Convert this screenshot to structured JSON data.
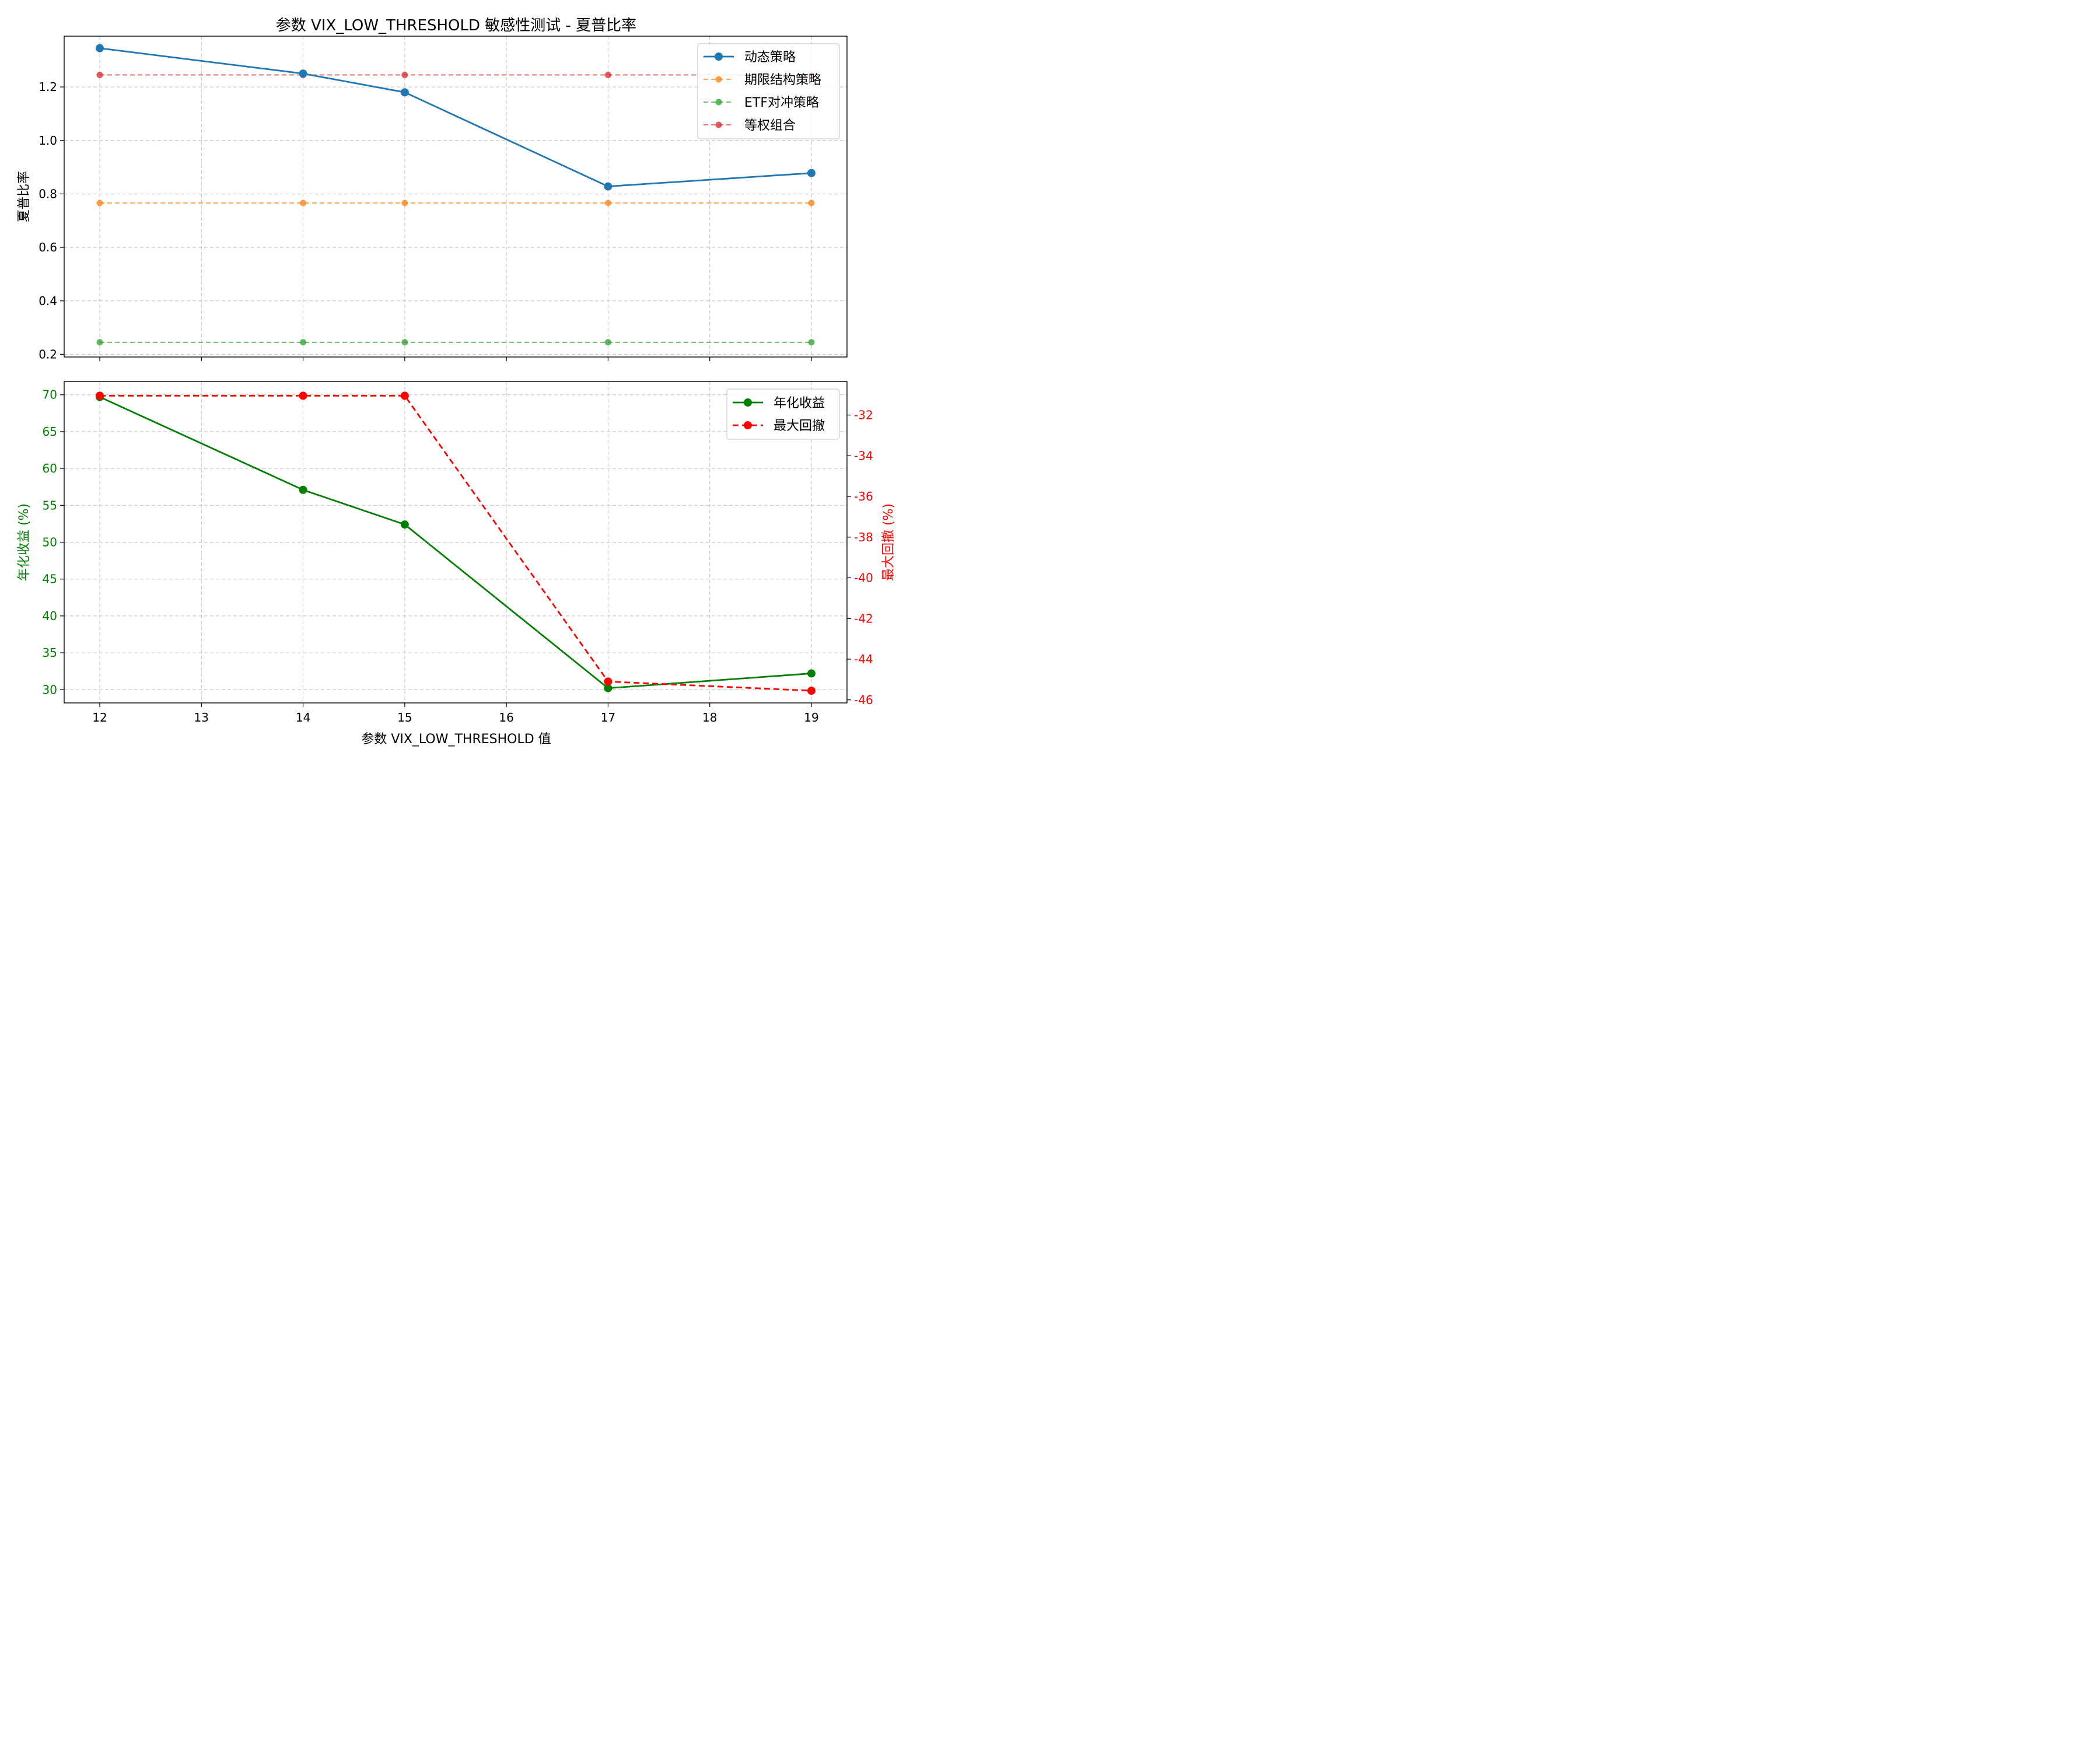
{
  "chart_data": [
    {
      "type": "line",
      "title": "参数 VIX_LOW_THRESHOLD 敏感性测试 - 夏普比率",
      "xlabel": "",
      "ylabel": "夏普比率",
      "x": [
        12,
        14,
        15,
        17,
        19
      ],
      "x_ticks": [
        "12",
        "13",
        "14",
        "15",
        "16",
        "17",
        "18",
        "19"
      ],
      "xlim": [
        11.65,
        19.35
      ],
      "ylim": [
        0.19,
        1.39
      ],
      "y_ticks": [
        "0.2",
        "0.4",
        "0.6",
        "0.8",
        "1.0",
        "1.2"
      ],
      "grid": true,
      "legend_position": "top-right",
      "series": [
        {
          "name": "动态策略",
          "values": [
            1.345,
            1.25,
            1.18,
            0.828,
            0.878
          ],
          "color": "#1f77b4",
          "style": "solid",
          "marker": "circle-large"
        },
        {
          "name": "期限结构策略",
          "values": [
            0.766,
            0.766,
            0.766,
            0.766,
            0.766
          ],
          "color": "#ff7f0e",
          "style": "dashed",
          "marker": "circle-small"
        },
        {
          "name": "ETF对冲策略",
          "values": [
            0.245,
            0.245,
            0.245,
            0.245,
            0.245
          ],
          "color": "#2ca02c",
          "style": "dashed",
          "marker": "circle-small"
        },
        {
          "name": "等权组合",
          "values": [
            1.245,
            1.245,
            1.245,
            1.245,
            1.245
          ],
          "color": "#d62728",
          "style": "dashed",
          "marker": "circle-small"
        }
      ]
    },
    {
      "type": "line",
      "title": "",
      "xlabel": "参数 VIX_LOW_THRESHOLD 值",
      "ylabel": "年化收益 (%)",
      "ylabel_right": "最大回撤 (%)",
      "x": [
        12,
        14,
        15,
        17,
        19
      ],
      "x_ticks": [
        "12",
        "13",
        "14",
        "15",
        "16",
        "17",
        "18",
        "19"
      ],
      "xlim": [
        11.65,
        19.35
      ],
      "ylim": [
        28.2,
        71.8
      ],
      "y_ticks": [
        "30",
        "35",
        "40",
        "45",
        "50",
        "55",
        "60",
        "65",
        "70"
      ],
      "ylim_right": [
        -46.15,
        -30.35
      ],
      "y_ticks_right": [
        "-32",
        "-34",
        "-36",
        "-38",
        "-40",
        "-42",
        "-44",
        "-46"
      ],
      "grid": true,
      "legend_position": "top-right",
      "series": [
        {
          "name": "年化收益",
          "values": [
            69.7,
            57.1,
            52.4,
            30.2,
            32.2
          ],
          "color": "#008000",
          "style": "solid",
          "axis": "left"
        },
        {
          "name": "最大回撤",
          "values": [
            -31.05,
            -31.05,
            -31.05,
            -45.1,
            -45.55
          ],
          "color": "#ff0000",
          "style": "dashed",
          "axis": "right"
        }
      ]
    }
  ]
}
